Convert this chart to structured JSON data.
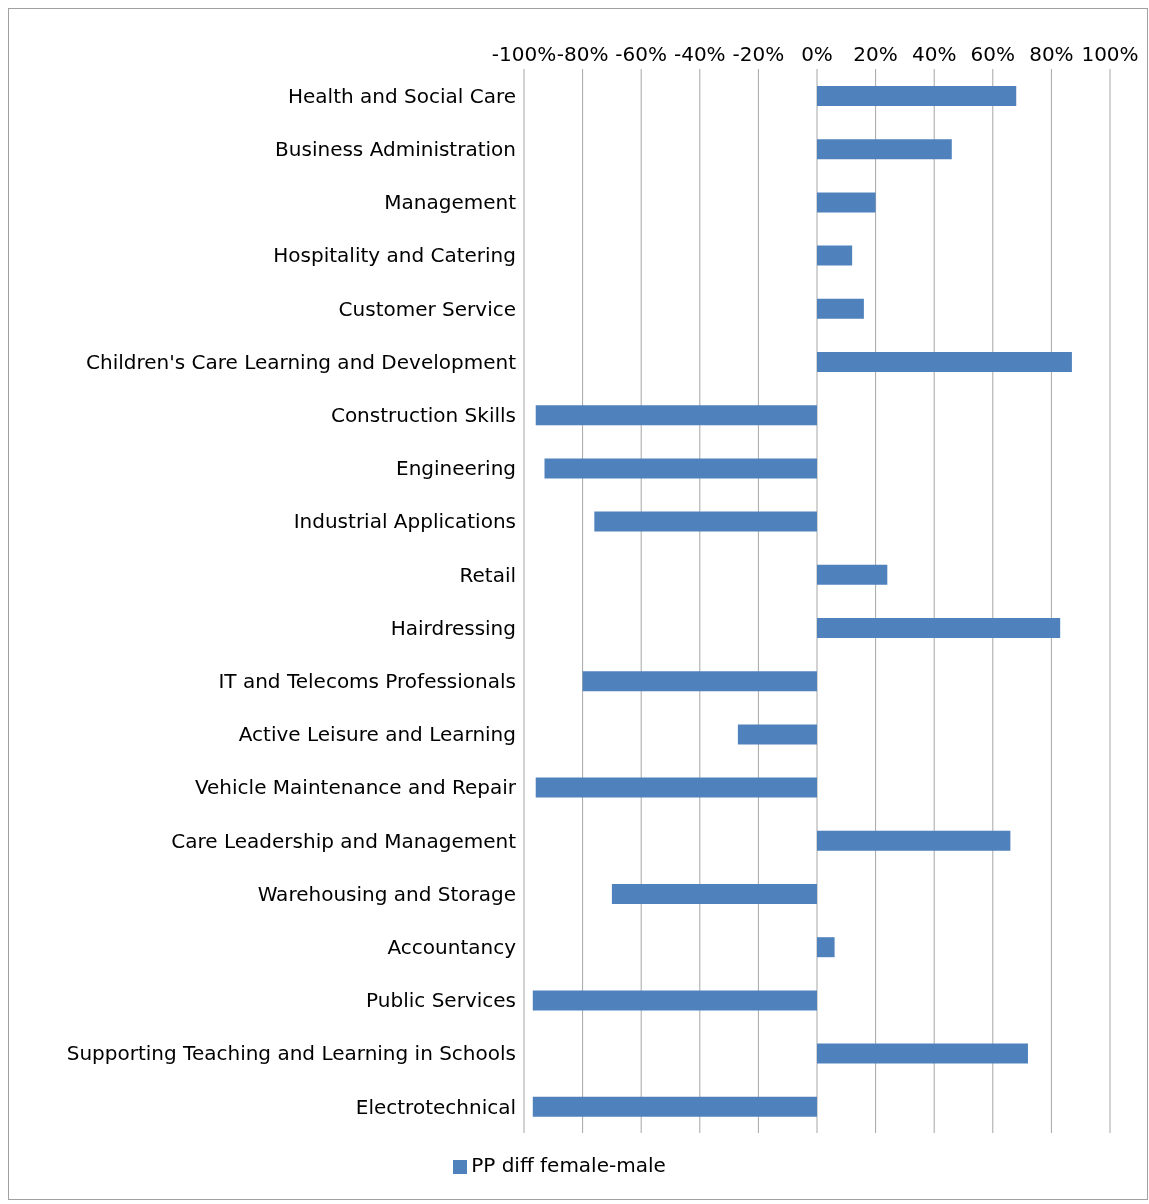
{
  "chart_data": {
    "type": "bar",
    "orientation": "horizontal",
    "categories": [
      "Health and Social Care",
      "Business Administration",
      "Management",
      "Hospitality and Catering",
      "Customer Service",
      "Children's Care Learning and Development",
      "Construction Skills",
      "Engineering",
      "Industrial Applications",
      "Retail",
      "Hairdressing",
      "IT and Telecoms Professionals",
      "Active Leisure and Learning",
      "Vehicle Maintenance and Repair",
      "Care Leadership and Management",
      "Warehousing and Storage",
      "Accountancy",
      "Public Services",
      "Supporting Teaching and Learning in Schools",
      "Electrotechnical"
    ],
    "series": [
      {
        "name": "PP diff female-male",
        "color": "#4f81bd",
        "values": [
          68,
          46,
          20,
          12,
          16,
          87,
          -96,
          -93,
          -76,
          24,
          83,
          -80,
          -27,
          -96,
          66,
          -70,
          6,
          -97,
          72,
          -97
        ]
      }
    ],
    "xlim": [
      -100,
      100
    ],
    "xticks": [
      {
        "value": -100,
        "label": "-100%"
      },
      {
        "value": -80,
        "label": "-80%"
      },
      {
        "value": -60,
        "label": "-60%"
      },
      {
        "value": -40,
        "label": "-40%"
      },
      {
        "value": -20,
        "label": "-20%"
      },
      {
        "value": 0,
        "label": "0%"
      },
      {
        "value": 20,
        "label": "20%"
      },
      {
        "value": 40,
        "label": "40%"
      },
      {
        "value": 60,
        "label": "60%"
      },
      {
        "value": 80,
        "label": "80%"
      },
      {
        "value": 100,
        "label": "100%"
      }
    ],
    "grid": "x",
    "legend": "bottom"
  }
}
